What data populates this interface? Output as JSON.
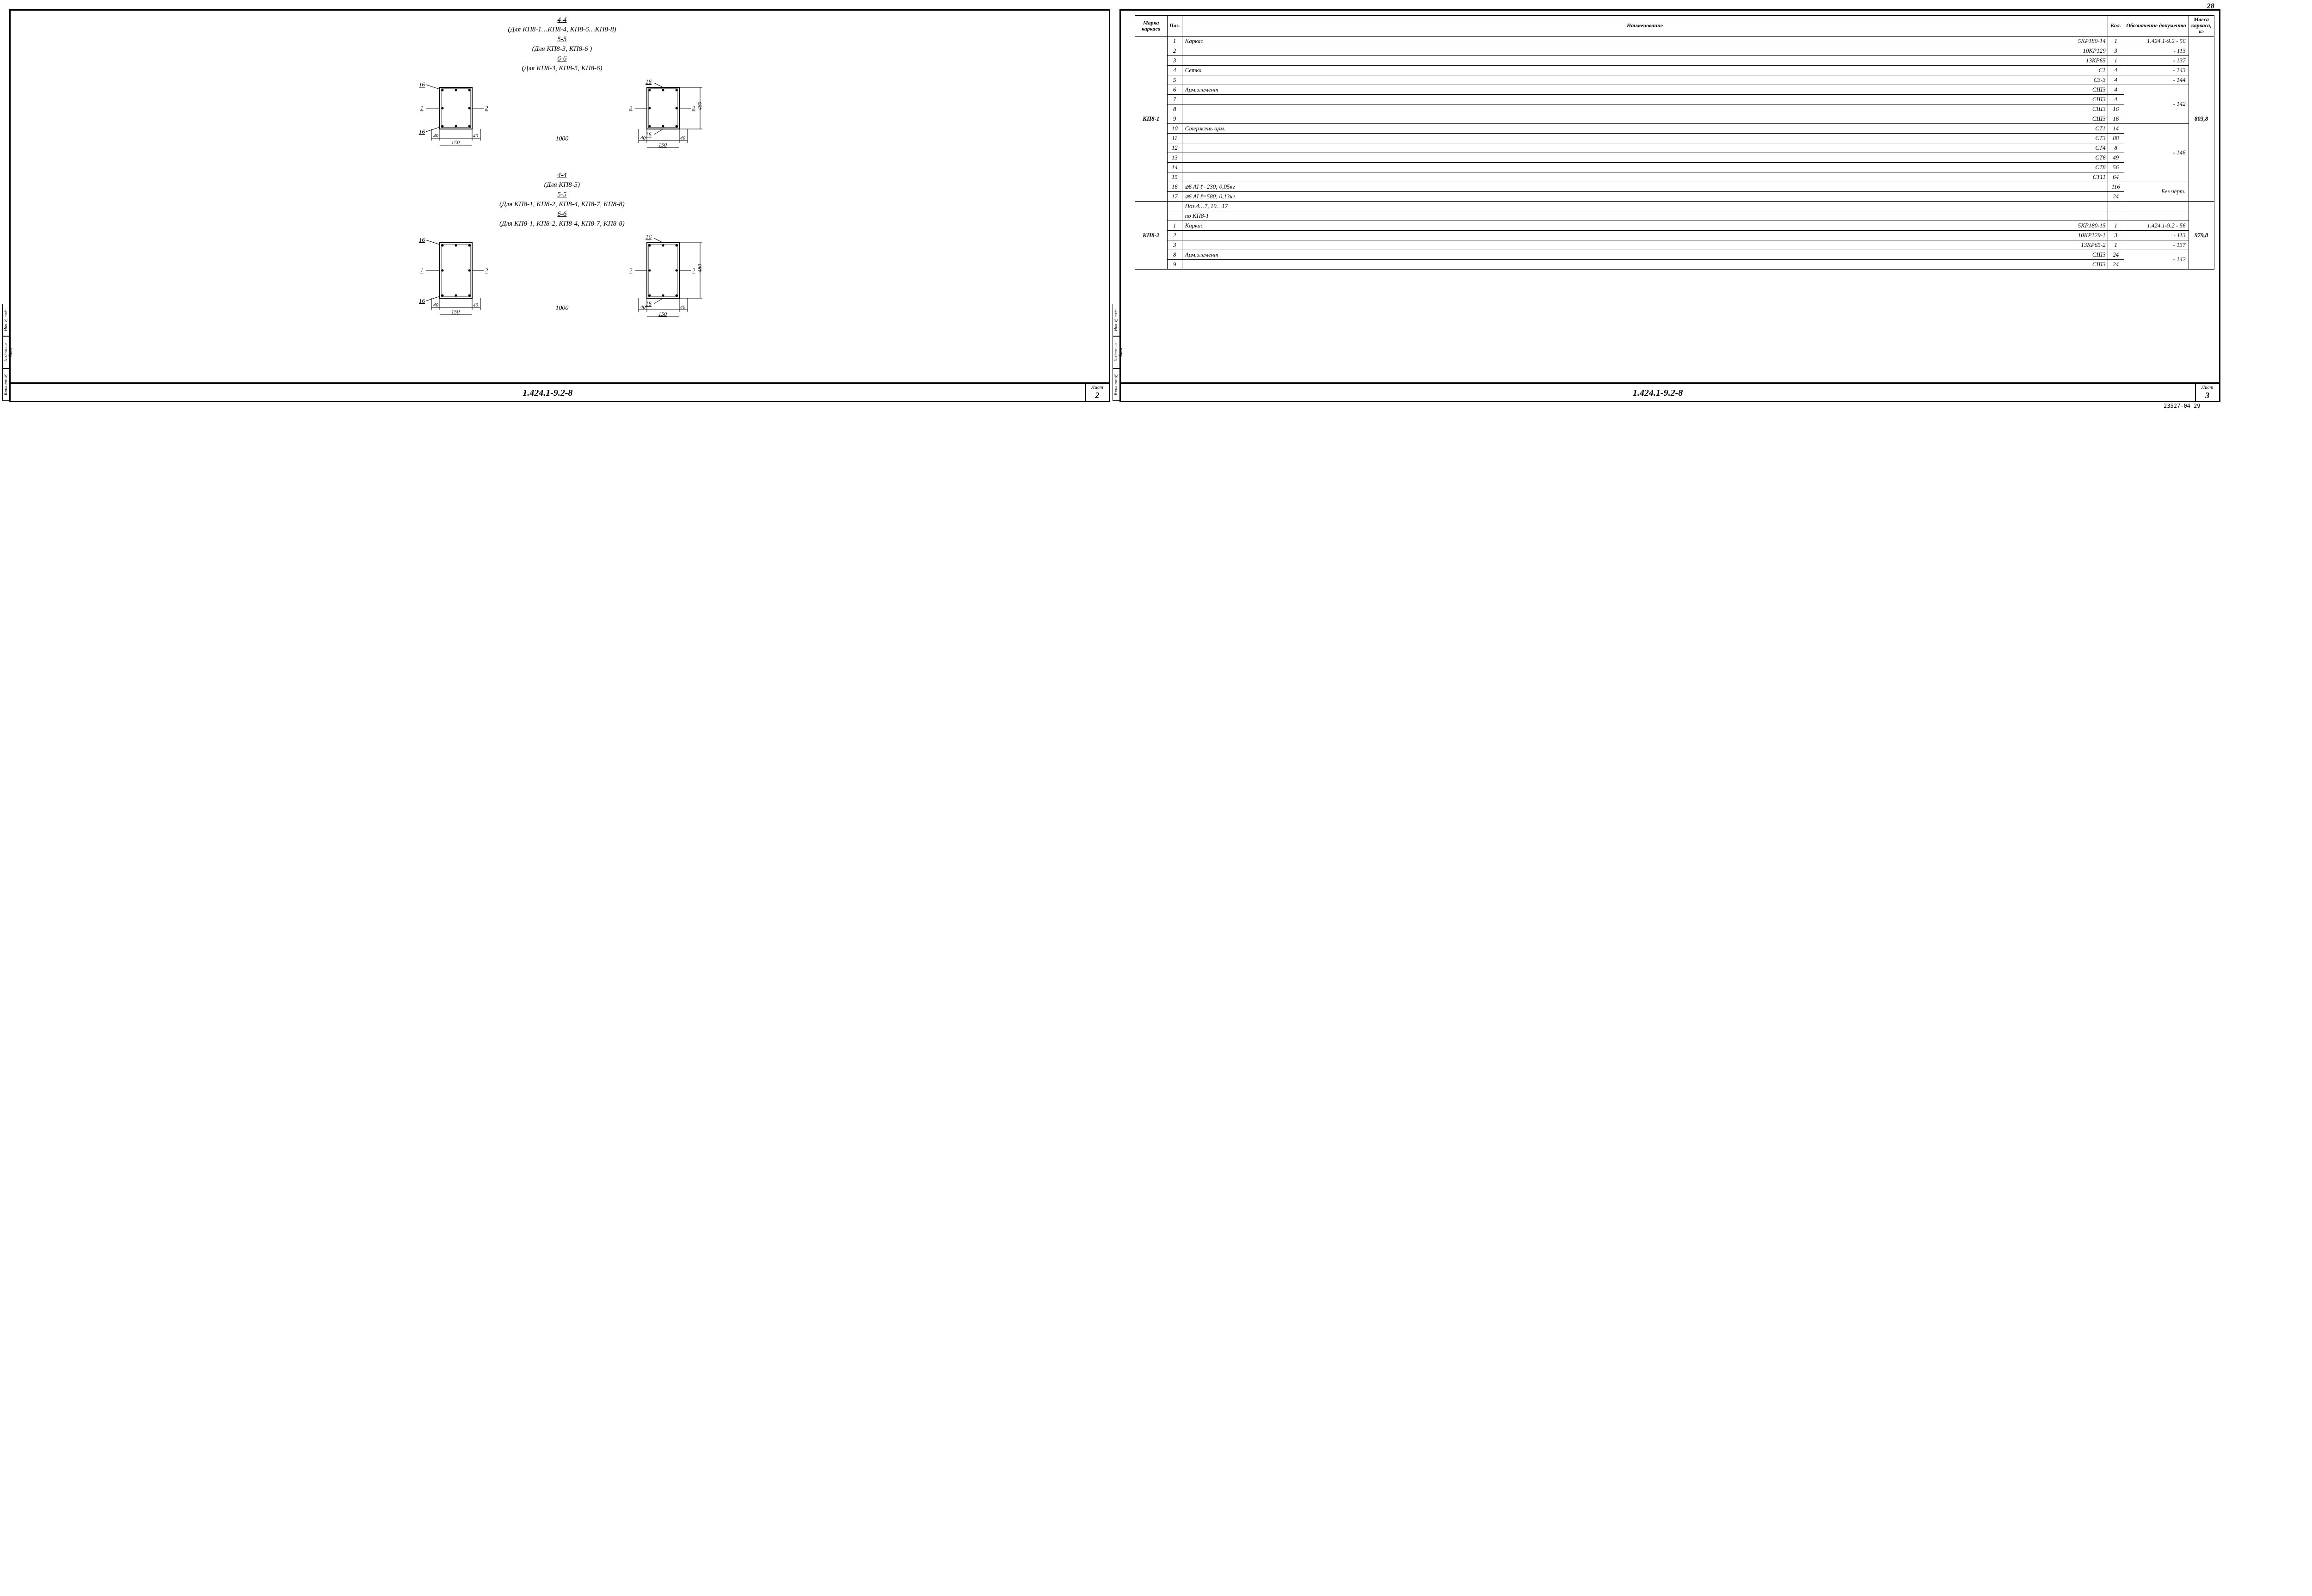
{
  "page_num_top": "28",
  "footer_code": "23527-04  29",
  "left": {
    "sections1": [
      {
        "key": "4-4",
        "note": "(Для КП8-1…КП8-4, КП8-6…КП8-8)"
      },
      {
        "key": "5-5",
        "note": "(Для КП8-3, КП8-6 )"
      },
      {
        "key": "6-6",
        "note": "(Для КП8-3, КП8-5, КП8-6)"
      }
    ],
    "sections2": [
      {
        "key": "4-4",
        "note": "(Для КП8-5)"
      },
      {
        "key": "5-5",
        "note": "(Для КП8-1, КП8-2, КП8-4, КП8-7, КП8-8)"
      },
      {
        "key": "6-6",
        "note": "(Для КП8-1, КП8-2, КП8-4, КП8-7, КП8-8)"
      }
    ],
    "diagram": {
      "callouts": [
        "16",
        "1",
        "2",
        "16"
      ],
      "callouts_r": [
        "16",
        "2",
        "2",
        "16"
      ],
      "dim_40": "40",
      "dim_150": "150",
      "dim_1000": "1000",
      "dim_480": "480",
      "rect_w": 70,
      "rect_h": 90,
      "rect_w2": 70,
      "rect_h2": 120,
      "stroke": "#000",
      "fill": "#fff"
    },
    "doc_code": "1.424.1-9.2-8",
    "sheet_label": "Лист",
    "sheet_num": "2",
    "side_tabs": [
      "Инв.№ подл.",
      "Подпись и дата",
      "Взам.инв.№"
    ]
  },
  "right": {
    "headers": {
      "marka": "Марка каркаса",
      "poz": "Поз.",
      "name": "Наименование",
      "kol": "Кол.",
      "doc": "Обозначение документа",
      "mass": "Масса каркаса, кг"
    },
    "groups": [
      {
        "marka": "КП8-1",
        "mass": "803,8",
        "rows": [
          {
            "poz": "1",
            "name_l": "Каркас",
            "name_r": "5КР180-14",
            "kol": "1",
            "doc": "1.424.1-9.2 - 56"
          },
          {
            "poz": "2",
            "name_l": "",
            "name_r": "10КР129",
            "kol": "3",
            "doc": "- 113"
          },
          {
            "poz": "3",
            "name_l": "",
            "name_r": "13КР65",
            "kol": "1",
            "doc": "- 137"
          },
          {
            "poz": "4",
            "name_l": "Сетка",
            "name_r": "С1",
            "kol": "4",
            "doc": "- 143"
          },
          {
            "poz": "5",
            "name_l": "",
            "name_r": "С3-3",
            "kol": "4",
            "doc": "- 144"
          },
          {
            "poz": "6",
            "name_l": "Арм.элемент",
            "name_r": "СШ3",
            "kol": "4",
            "doc": ""
          },
          {
            "poz": "7",
            "name_l": "",
            "name_r": "СШ3",
            "kol": "4",
            "doc": "- 142"
          },
          {
            "poz": "8",
            "name_l": "",
            "name_r": "СШ3",
            "kol": "16",
            "doc": ""
          },
          {
            "poz": "9",
            "name_l": "",
            "name_r": "СШ3",
            "kol": "16",
            "doc": ""
          },
          {
            "poz": "10",
            "name_l": "Стержень арм.",
            "name_r": "СТ1",
            "kol": "14",
            "doc": ""
          },
          {
            "poz": "11",
            "name_l": "",
            "name_r": "СТ3",
            "kol": "88",
            "doc": ""
          },
          {
            "poz": "12",
            "name_l": "",
            "name_r": "СТ4",
            "kol": "8",
            "doc": "- 146"
          },
          {
            "poz": "13",
            "name_l": "",
            "name_r": "СТ6",
            "kol": "49",
            "doc": ""
          },
          {
            "poz": "14",
            "name_l": "",
            "name_r": "СТ8",
            "kol": "56",
            "doc": ""
          },
          {
            "poz": "15",
            "name_l": "",
            "name_r": "СТ11",
            "kol": "64",
            "doc": ""
          },
          {
            "poz": "16",
            "name_l": "⌀6 AI  ℓ=230;  0,05кг",
            "name_r": "",
            "kol": "116",
            "doc": "Без черт."
          },
          {
            "poz": "17",
            "name_l": "⌀6 AI  ℓ=580;  0,13кг",
            "name_r": "",
            "kol": "24",
            "doc": ""
          }
        ],
        "doc_merges": [
          {
            "start": 5,
            "span": 4,
            "text": "- 142"
          },
          {
            "start": 9,
            "span": 6,
            "text": "- 146"
          },
          {
            "start": 15,
            "span": 2,
            "text": "Без черт."
          }
        ]
      },
      {
        "marka": "КП8-2",
        "mass": "979,8",
        "rows": [
          {
            "poz": "",
            "name_l": "Поз.4…7, 10…17",
            "name_r": "",
            "kol": "",
            "doc": ""
          },
          {
            "poz": "",
            "name_l": "по КП8-1",
            "name_r": "",
            "kol": "",
            "doc": ""
          },
          {
            "poz": "1",
            "name_l": "Каркас",
            "name_r": "5КР180-15",
            "kol": "1",
            "doc": "1.424.1-9.2 - 56"
          },
          {
            "poz": "2",
            "name_l": "",
            "name_r": "10КР129-1",
            "kol": "3",
            "doc": "- 113"
          },
          {
            "poz": "3",
            "name_l": "",
            "name_r": "13КР65-2",
            "kol": "1",
            "doc": "- 137"
          },
          {
            "poz": "8",
            "name_l": "Арм.элемент",
            "name_r": "СШ3",
            "kol": "24",
            "doc": "- 142"
          },
          {
            "poz": "9",
            "name_l": "",
            "name_r": "СШ3",
            "kol": "24",
            "doc": ""
          }
        ],
        "doc_merges": [
          {
            "start": 5,
            "span": 2,
            "text": "- 142"
          }
        ]
      }
    ],
    "doc_code": "1.424.1-9.2-8",
    "sheet_label": "Лист",
    "sheet_num": "3",
    "side_tabs": [
      "Инв.№ подл.",
      "Подпись и дата",
      "Взам.инв.№"
    ]
  },
  "style": {
    "border_color": "#000000",
    "bg": "#ffffff",
    "font": "cursive-italic",
    "title_fontsize_pt": 15,
    "table_fontsize_pt": 13
  }
}
